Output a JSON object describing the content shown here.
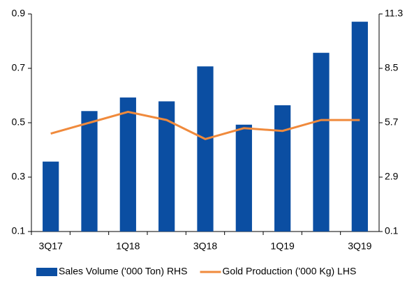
{
  "chart_data": {
    "type": "bar_line",
    "categories": [
      "3Q17",
      null,
      "1Q18",
      null,
      "3Q18",
      null,
      "1Q19",
      null,
      "3Q19"
    ],
    "series": [
      {
        "name": "Sales Volume ('000 Ton) RHS",
        "type": "bar",
        "axis": "y2",
        "color": "#0b4ea2",
        "values": [
          3.7,
          6.3,
          7.0,
          6.8,
          8.6,
          5.6,
          6.6,
          9.3,
          10.9
        ]
      },
      {
        "name": "Gold Production ('000 Kg) LHS",
        "type": "line",
        "axis": "y",
        "color": "#f08a3c",
        "values": [
          0.46,
          0.5,
          0.54,
          0.51,
          0.44,
          0.48,
          0.47,
          0.51,
          0.51
        ]
      }
    ],
    "ylim": [
      0.1,
      0.9
    ],
    "yticks": [
      0.1,
      0.3,
      0.5,
      0.7,
      0.9
    ],
    "y2lim": [
      0.1,
      11.3
    ],
    "y2ticks": [
      0.1,
      2.9,
      5.7,
      8.5,
      11.3
    ],
    "legend": "bottom"
  }
}
